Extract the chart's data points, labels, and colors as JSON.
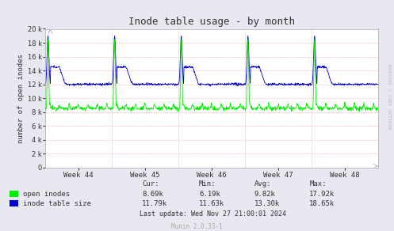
{
  "title": "Inode table usage - by month",
  "ylabel": "number of open inodes",
  "bg_color": "#e8e8f0",
  "plot_bg_color": "#ffffff",
  "grid_color": "#ffaaaa",
  "week_labels": [
    "Week 44",
    "Week 45",
    "Week 46",
    "Week 47",
    "Week 48"
  ],
  "ylim": [
    0,
    20000
  ],
  "yticks": [
    0,
    2000,
    4000,
    6000,
    8000,
    10000,
    12000,
    14000,
    16000,
    18000,
    20000
  ],
  "green_color": "#00ee00",
  "blue_color": "#0000cc",
  "legend": [
    "open inodes",
    "inode table size"
  ],
  "stats_labels": [
    "Cur:",
    "Min:",
    "Avg:",
    "Max:"
  ],
  "stats_green": [
    "8.69k",
    "6.19k",
    "9.82k",
    "17.92k"
  ],
  "stats_blue": [
    "11.79k",
    "11.63k",
    "13.30k",
    "18.65k"
  ],
  "last_update": "Last update: Wed Nov 27 21:00:01 2024",
  "munin_label": "Munin 2.0.33-1",
  "rrdtool_label": "RRDTOOL / TOBI OETIKER"
}
